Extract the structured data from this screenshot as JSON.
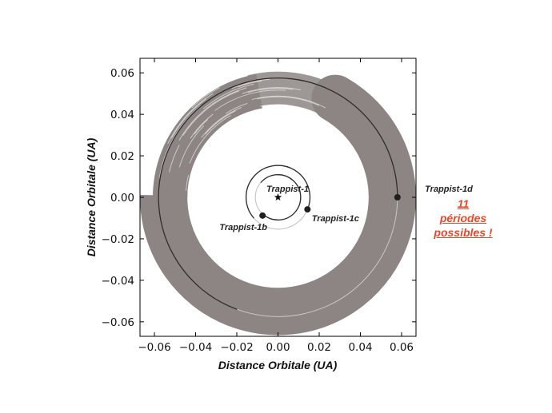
{
  "chart_data": {
    "type": "scatter",
    "xlabel": "Distance  Orbitale (UA)",
    "ylabel": "Distance  Orbitale (UA)",
    "xlim": [
      -0.067,
      0.067
    ],
    "ylim": [
      -0.067,
      0.067
    ],
    "xticks": [
      "−0.06",
      "−0.04",
      "−0.02",
      "0.00",
      "0.02",
      "0.04",
      "0.06"
    ],
    "yticks": [
      "0.06",
      "0.04",
      "0.02",
      "0.00",
      "−0.02",
      "−0.04",
      "−0.06"
    ],
    "tick_values": [
      -0.06,
      -0.04,
      -0.02,
      0.0,
      0.02,
      0.04,
      0.06
    ],
    "grid": false,
    "star": {
      "label": "Trappist-1",
      "x": 0.0,
      "y": 0.0
    },
    "planets": [
      {
        "name": "Trappist-1b",
        "orbit_radius": 0.011,
        "x": -0.0075,
        "y": -0.0088,
        "arc_start_deg": 140,
        "arc_sweep_deg": 270
      },
      {
        "name": "Trappist-1c",
        "orbit_radius": 0.0155,
        "x": 0.0143,
        "y": -0.0058,
        "arc_start_deg": 95,
        "arc_sweep_deg": 243
      },
      {
        "name": "Trappist-1d",
        "orbit_radius": 0.058,
        "x": 0.058,
        "y": 0.0,
        "arc_start_deg": 110,
        "arc_sweep_deg": 250,
        "band_inner": 0.044,
        "band_outer": 0.067
      }
    ],
    "annotation": [
      "11",
      "périodes",
      "possibles !"
    ],
    "colors": {
      "band": "#8c8583",
      "orbit_line": "#2b2b2b",
      "faint_orbit": "#c8c8c8",
      "annotation": "#e8472e"
    }
  }
}
